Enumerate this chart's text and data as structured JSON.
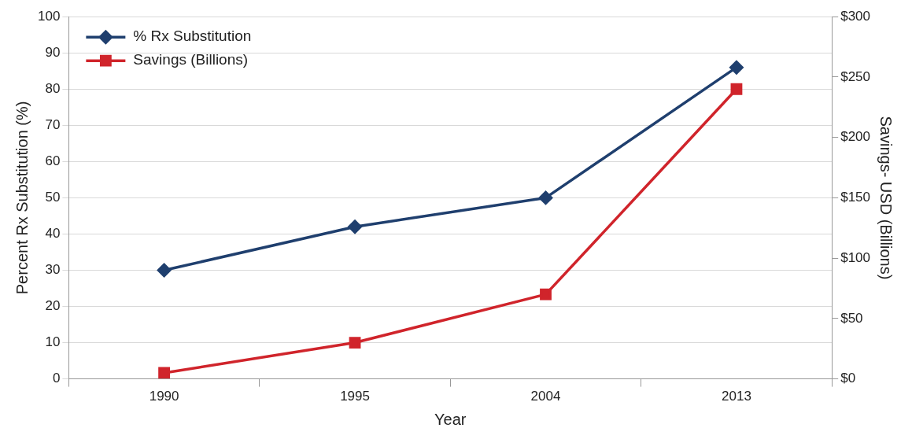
{
  "chart_data": {
    "type": "line",
    "xlabel": "Year",
    "ylabel": "Percent Rx Substitution (%)",
    "y2label": "Savings- USD (Billions)",
    "categories": [
      "1990",
      "1995",
      "2004",
      "2013"
    ],
    "series": [
      {
        "name": "% Rx Substitution",
        "color": "#1f3f6e",
        "values": [
          30,
          42,
          50,
          86
        ],
        "marker": "diamond"
      },
      {
        "name": "Savings (Billions)",
        "color": "#d0242b",
        "values": [
          5,
          30,
          70,
          240
        ],
        "axis": "y2",
        "marker": "square"
      }
    ],
    "ylim": [
      0,
      100
    ],
    "yticks": [
      0,
      10,
      20,
      30,
      40,
      50,
      60,
      70,
      80,
      90,
      100
    ],
    "y2lim": [
      0,
      300
    ],
    "y2ticks": [
      {
        "value": 0,
        "label": "$0"
      },
      {
        "value": 50,
        "label": "$50"
      },
      {
        "value": 100,
        "label": "$100"
      },
      {
        "value": 150,
        "label": "$150"
      },
      {
        "value": 200,
        "label": "$200"
      },
      {
        "value": 250,
        "label": "$250"
      },
      {
        "value": 300,
        "label": "$300"
      }
    ],
    "grid": "y",
    "legend": "top left",
    "line_style": "solid"
  }
}
